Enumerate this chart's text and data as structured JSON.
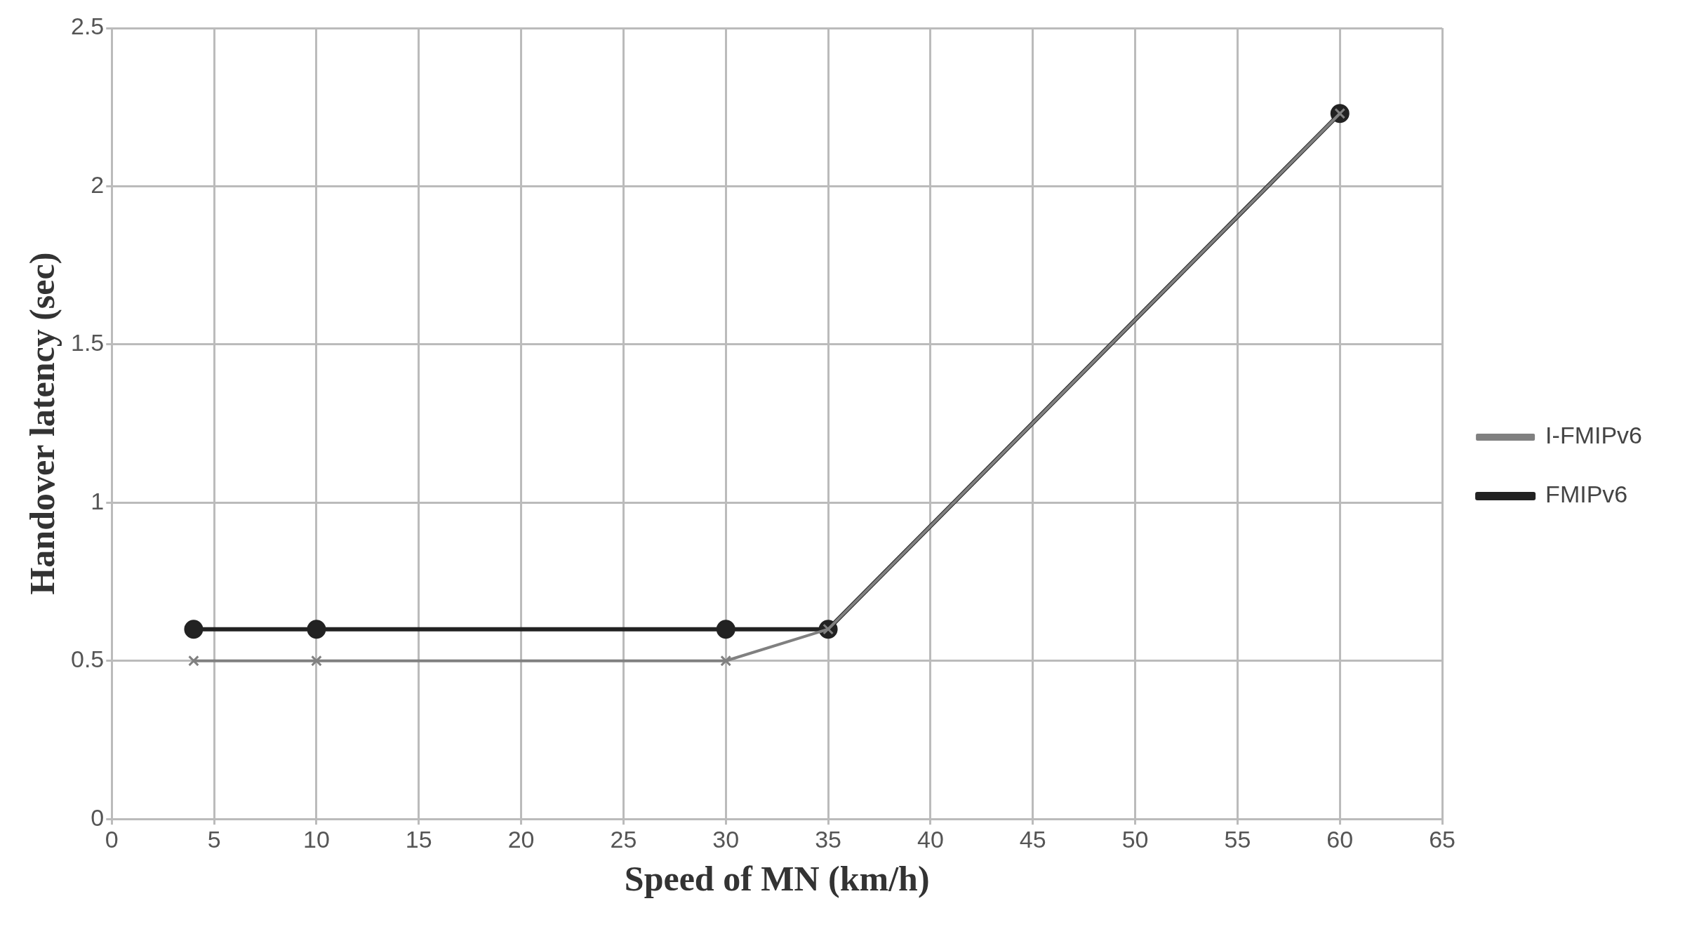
{
  "chart_data": {
    "type": "line",
    "xlabel": "Speed of MN (km/h)",
    "ylabel": "Handover latency (sec)",
    "x": [
      4,
      10,
      30,
      35,
      60
    ],
    "series": [
      {
        "name": "FMIPv6",
        "color": "#222222",
        "marker": "circle",
        "values": [
          0.6,
          0.6,
          0.6,
          0.6,
          2.23
        ]
      },
      {
        "name": "I-FMIPv6",
        "color": "#808080",
        "marker": "cross",
        "values": [
          0.5,
          0.5,
          0.5,
          0.6,
          2.23
        ]
      }
    ],
    "xlim": [
      0,
      65
    ],
    "xticks": [
      0,
      5,
      10,
      15,
      20,
      25,
      30,
      35,
      40,
      45,
      50,
      55,
      60,
      65
    ],
    "ylim": [
      0,
      2.5
    ],
    "yticks": [
      0,
      0.5,
      1,
      1.5,
      2,
      2.5
    ],
    "grid": true,
    "legend": "right",
    "line_style": "solid"
  }
}
